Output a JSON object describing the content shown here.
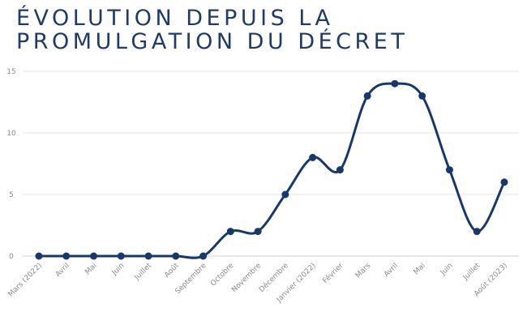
{
  "title_lines": [
    "ÉVOLUTION DEPUIS LA",
    "PROMULGATION DU DÉCRET"
  ],
  "chart_data": {
    "type": "line",
    "title": "ÉVOLUTION DEPUIS LA PROMULGATION DU DÉCRET",
    "categories": [
      "Mars (2022)",
      "Avril",
      "Mai",
      "Juin",
      "Juillet",
      "Août",
      "Septembre",
      "Octobre",
      "Novembre",
      "Décembre",
      "Janvier (2022)",
      "Février",
      "Mars",
      "Avril",
      "Mai",
      "Juin",
      "Juillet",
      "Août (2023)"
    ],
    "series": [
      {
        "values": [
          0,
          0,
          0,
          0,
          0,
          0,
          0,
          2,
          2,
          5,
          8,
          7,
          13,
          14,
          13,
          7,
          2,
          6
        ]
      }
    ],
    "y_ticks": [
      0,
      5,
      10,
      15
    ],
    "ylim": [
      0,
      15
    ],
    "xlabel": "",
    "ylabel": "",
    "grid": true,
    "smooth": true,
    "line_color": "#17386e",
    "marker_color": "#17386e"
  }
}
